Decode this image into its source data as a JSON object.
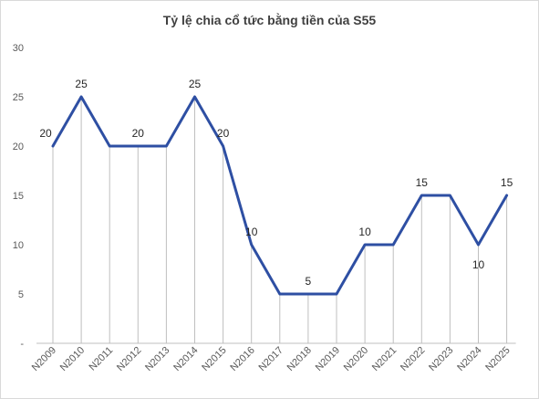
{
  "chart_data": {
    "type": "line",
    "title": "Tỷ lệ chia cổ tức bằng tiền của S55",
    "categories": [
      "N2009",
      "N2010",
      "N2011",
      "N2012",
      "N2013",
      "N2014",
      "N2015",
      "N2016",
      "N2017",
      "N2018",
      "N2019",
      "N2020",
      "N2021",
      "N2022",
      "N2023",
      "N2024",
      "N2025"
    ],
    "series": [
      {
        "values": [
          20,
          25,
          20,
          20,
          20,
          25,
          20,
          10,
          5,
          5,
          5,
          10,
          10,
          15,
          15,
          10,
          15
        ]
      }
    ],
    "data_labels": [
      {
        "index": 0,
        "text": "20"
      },
      {
        "index": 1,
        "text": "25"
      },
      {
        "index": 3,
        "text": "20"
      },
      {
        "index": 5,
        "text": "25"
      },
      {
        "index": 6,
        "text": "20"
      },
      {
        "index": 7,
        "text": "10"
      },
      {
        "index": 9,
        "text": "5"
      },
      {
        "index": 11,
        "text": "10"
      },
      {
        "index": 13,
        "text": "15"
      },
      {
        "index": 15,
        "text": "10"
      },
      {
        "index": 16,
        "text": "15"
      }
    ],
    "y_ticks": [
      {
        "value": 0,
        "label": "-"
      },
      {
        "value": 5,
        "label": "5"
      },
      {
        "value": 10,
        "label": "10"
      },
      {
        "value": 15,
        "label": "15"
      },
      {
        "value": 20,
        "label": "20"
      },
      {
        "value": 25,
        "label": "25"
      },
      {
        "value": 30,
        "label": "30"
      }
    ],
    "ylim": [
      0,
      30
    ],
    "grid": false,
    "drop_lines": true,
    "colors": {
      "line": "#2e4fa3",
      "drop_line": "#bfbfbf",
      "axis": "#bfbfbf"
    }
  }
}
